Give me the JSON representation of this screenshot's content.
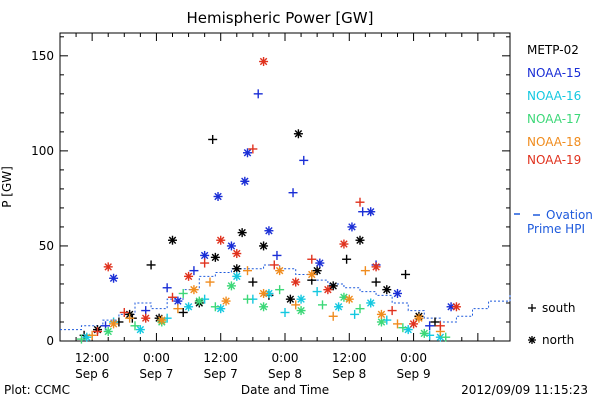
{
  "chart_data": {
    "type": "scatter",
    "title": "Hemispheric Power [GW]",
    "xlabel": "Date and Time",
    "ylabel": "P [GW]",
    "ylim": [
      0,
      162
    ],
    "xlim_hours": [
      -18,
      66
    ],
    "grid": false,
    "yticks": [
      0,
      50,
      100,
      150
    ],
    "xticks": [
      {
        "label_time": "12:00",
        "label_day": "Sep 6",
        "hour": -12
      },
      {
        "label_time": "0:00",
        "label_day": "Sep 7",
        "hour": 0
      },
      {
        "label_time": "12:00",
        "label_day": "Sep 7",
        "hour": 12
      },
      {
        "label_time": "0:00",
        "label_day": "Sep 8",
        "hour": 24
      },
      {
        "label_time": "12:00",
        "label_day": "Sep 8",
        "hour": 36
      },
      {
        "label_time": "0:00",
        "label_day": "Sep 9",
        "hour": 48
      }
    ],
    "legend_placement": "right",
    "footer_left": "Plot: CCMC",
    "footer_right": "2012/09/09 11:15:23",
    "marker_legend": [
      {
        "symbol": "+",
        "label": "south"
      },
      {
        "symbol": "*",
        "label": "north"
      }
    ],
    "series": [
      {
        "name": "METP-02",
        "color": "#000000",
        "points": [
          [
            -13.5,
            3,
            "+"
          ],
          [
            -11,
            6,
            "*"
          ],
          [
            -7,
            10,
            "+"
          ],
          [
            -5,
            14,
            "*"
          ],
          [
            -4.5,
            12,
            "+"
          ],
          [
            -1,
            40,
            "+"
          ],
          [
            0.5,
            12,
            "*"
          ],
          [
            3,
            53,
            "*"
          ],
          [
            5,
            15,
            "+"
          ],
          [
            8,
            20,
            "*"
          ],
          [
            10.5,
            106,
            "+"
          ],
          [
            11,
            44,
            "*"
          ],
          [
            15,
            38,
            "*"
          ],
          [
            16,
            57,
            "*"
          ],
          [
            18,
            31,
            "+"
          ],
          [
            20,
            50,
            "*"
          ],
          [
            21,
            24,
            "+"
          ],
          [
            25,
            22,
            "*"
          ],
          [
            26.5,
            109,
            "*"
          ],
          [
            29,
            32,
            "+"
          ],
          [
            30,
            37,
            "*"
          ],
          [
            33,
            29,
            "*"
          ],
          [
            35.5,
            43,
            "+"
          ],
          [
            38,
            53,
            "*"
          ],
          [
            41,
            31,
            "+"
          ],
          [
            43,
            27,
            "*"
          ],
          [
            46.5,
            35,
            "+"
          ],
          [
            49,
            13,
            "*"
          ],
          [
            52,
            10,
            "+"
          ]
        ]
      },
      {
        "name": "NOAA-15",
        "color": "#1a2ed6",
        "points": [
          [
            -9.5,
            8,
            "+"
          ],
          [
            -8,
            33,
            "*"
          ],
          [
            -2,
            16,
            "+"
          ],
          [
            2,
            28,
            "+"
          ],
          [
            4,
            21,
            "*"
          ],
          [
            7,
            37,
            "+"
          ],
          [
            9,
            45,
            "*"
          ],
          [
            11.5,
            76,
            "*"
          ],
          [
            14,
            50,
            "*"
          ],
          [
            16.5,
            84,
            "*"
          ],
          [
            17,
            99,
            "*"
          ],
          [
            19,
            130,
            "+"
          ],
          [
            21,
            58,
            "*"
          ],
          [
            22.5,
            45,
            "+"
          ],
          [
            25.5,
            78,
            "+"
          ],
          [
            27.5,
            95,
            "+"
          ],
          [
            30.5,
            41,
            "*"
          ],
          [
            36.5,
            60,
            "*"
          ],
          [
            38.5,
            68,
            "+"
          ],
          [
            40,
            68,
            "*"
          ],
          [
            41,
            40,
            "+"
          ],
          [
            45,
            25,
            "*"
          ],
          [
            51,
            8,
            "+"
          ],
          [
            55,
            18,
            "*"
          ]
        ]
      },
      {
        "name": "NOAA-16",
        "color": "#14c8e0",
        "points": [
          [
            -13,
            2,
            "*"
          ],
          [
            -8,
            10,
            "+"
          ],
          [
            -3,
            6,
            "*"
          ],
          [
            2,
            12,
            "+"
          ],
          [
            6,
            18,
            "*"
          ],
          [
            9,
            22,
            "+"
          ],
          [
            12,
            17,
            "*"
          ],
          [
            15,
            34,
            "*"
          ],
          [
            18,
            22,
            "+"
          ],
          [
            21,
            25,
            "*"
          ],
          [
            24,
            15,
            "+"
          ],
          [
            27,
            22,
            "*"
          ],
          [
            30,
            26,
            "+"
          ],
          [
            34,
            18,
            "*"
          ],
          [
            37,
            14,
            "+"
          ],
          [
            40,
            20,
            "*"
          ],
          [
            43,
            11,
            "+"
          ],
          [
            47,
            6,
            "*"
          ],
          [
            51,
            3,
            "+"
          ],
          [
            53,
            2,
            "*"
          ]
        ]
      },
      {
        "name": "NOAA-17",
        "color": "#3cd878",
        "points": [
          [
            -14,
            1,
            "+"
          ],
          [
            -9,
            5,
            "*"
          ],
          [
            -4,
            8,
            "+"
          ],
          [
            1,
            10,
            "*"
          ],
          [
            5,
            25,
            "+"
          ],
          [
            8,
            21,
            "*"
          ],
          [
            11,
            18,
            "+"
          ],
          [
            14,
            29,
            "*"
          ],
          [
            17,
            22,
            "+"
          ],
          [
            20,
            18,
            "*"
          ],
          [
            23,
            27,
            "+"
          ],
          [
            27,
            16,
            "*"
          ],
          [
            31,
            19,
            "+"
          ],
          [
            35,
            23,
            "*"
          ],
          [
            38,
            17,
            "+"
          ],
          [
            42,
            10,
            "*"
          ],
          [
            46,
            7,
            "+"
          ],
          [
            50,
            4,
            "*"
          ],
          [
            54,
            2,
            "+"
          ]
        ]
      },
      {
        "name": "NOAA-18",
        "color": "#f08c1e",
        "points": [
          [
            -12,
            3,
            "+"
          ],
          [
            -8,
            9,
            "*"
          ],
          [
            -5,
            12,
            "+"
          ],
          [
            1,
            11,
            "*"
          ],
          [
            4,
            17,
            "+"
          ],
          [
            7,
            27,
            "*"
          ],
          [
            10,
            31,
            "+"
          ],
          [
            13,
            21,
            "*"
          ],
          [
            17,
            37,
            "+"
          ],
          [
            20,
            25,
            "*"
          ],
          [
            23,
            37,
            "*"
          ],
          [
            26,
            19,
            "+"
          ],
          [
            29,
            35,
            "*"
          ],
          [
            33,
            13,
            "+"
          ],
          [
            36,
            22,
            "*"
          ],
          [
            39,
            37,
            "+"
          ],
          [
            42,
            14,
            "*"
          ],
          [
            45,
            9,
            "+"
          ],
          [
            49,
            12,
            "*"
          ],
          [
            53,
            5,
            "+"
          ]
        ]
      },
      {
        "name": "NOAA-19",
        "color": "#e0321e",
        "points": [
          [
            -11,
            5,
            "+"
          ],
          [
            -9,
            39,
            "*"
          ],
          [
            -6,
            15,
            "+"
          ],
          [
            -2,
            12,
            "*"
          ],
          [
            3,
            23,
            "+"
          ],
          [
            6,
            34,
            "*"
          ],
          [
            9,
            41,
            "+"
          ],
          [
            12,
            53,
            "*"
          ],
          [
            15,
            46,
            "*"
          ],
          [
            18,
            101,
            "+"
          ],
          [
            20,
            147,
            "*"
          ],
          [
            22,
            40,
            "+"
          ],
          [
            26,
            31,
            "*"
          ],
          [
            29,
            43,
            "+"
          ],
          [
            32,
            27,
            "*"
          ],
          [
            35,
            51,
            "*"
          ],
          [
            38,
            73,
            "+"
          ],
          [
            41,
            39,
            "*"
          ],
          [
            44,
            16,
            "+"
          ],
          [
            48,
            9,
            "*"
          ],
          [
            53,
            8,
            "+"
          ],
          [
            56,
            18,
            "*"
          ]
        ]
      },
      {
        "name": "Ovation Prime HPI",
        "color": "#1e5adc",
        "style": "step-dotted",
        "points": [
          [
            -18,
            6
          ],
          [
            -14,
            8
          ],
          [
            -10,
            11
          ],
          [
            -7,
            14
          ],
          [
            -4,
            20
          ],
          [
            -1,
            17
          ],
          [
            2,
            22
          ],
          [
            5,
            27
          ],
          [
            8,
            34
          ],
          [
            11,
            36
          ],
          [
            14,
            38
          ],
          [
            17,
            38
          ],
          [
            20,
            40
          ],
          [
            23,
            38
          ],
          [
            26,
            35
          ],
          [
            29,
            32
          ],
          [
            32,
            30
          ],
          [
            35,
            28
          ],
          [
            38,
            26
          ],
          [
            41,
            24
          ],
          [
            44,
            20
          ],
          [
            47,
            16
          ],
          [
            50,
            12
          ],
          [
            53,
            10
          ],
          [
            56,
            13
          ],
          [
            59,
            17
          ],
          [
            62,
            21
          ],
          [
            66,
            25
          ]
        ]
      }
    ]
  }
}
